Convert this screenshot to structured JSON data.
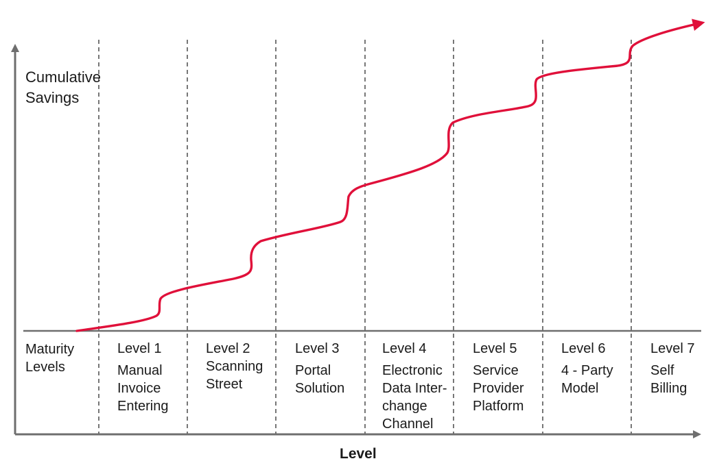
{
  "y_axis_label": [
    "Cumulative",
    "Savings"
  ],
  "x_axis_label": "Level",
  "row_label": [
    "Maturity",
    "Levels"
  ],
  "levels": [
    {
      "title": "Level 1",
      "name": [
        "Manual",
        "Invoice",
        "Entering"
      ]
    },
    {
      "title": "Level 2",
      "name": [
        "Scanning",
        "Street"
      ]
    },
    {
      "title": "Level 3",
      "name": [
        "Portal",
        "Solution"
      ]
    },
    {
      "title": "Level 4",
      "name": [
        "Electronic",
        "Data Inter-",
        "change",
        "Channel"
      ]
    },
    {
      "title": "Level 5",
      "name": [
        "Service",
        "Provider",
        "Platform"
      ]
    },
    {
      "title": "Level 6",
      "name": [
        "4 - Party",
        "Model"
      ]
    },
    {
      "title": "Level 7",
      "name": [
        "Self",
        "Billing"
      ]
    }
  ],
  "colors": {
    "axis": "#6e6e6e",
    "divider": "#555555",
    "curve": "#e0103a",
    "text": "#1a1a1a"
  },
  "curve_direction": "increasing step curve with arrow toward upper right"
}
